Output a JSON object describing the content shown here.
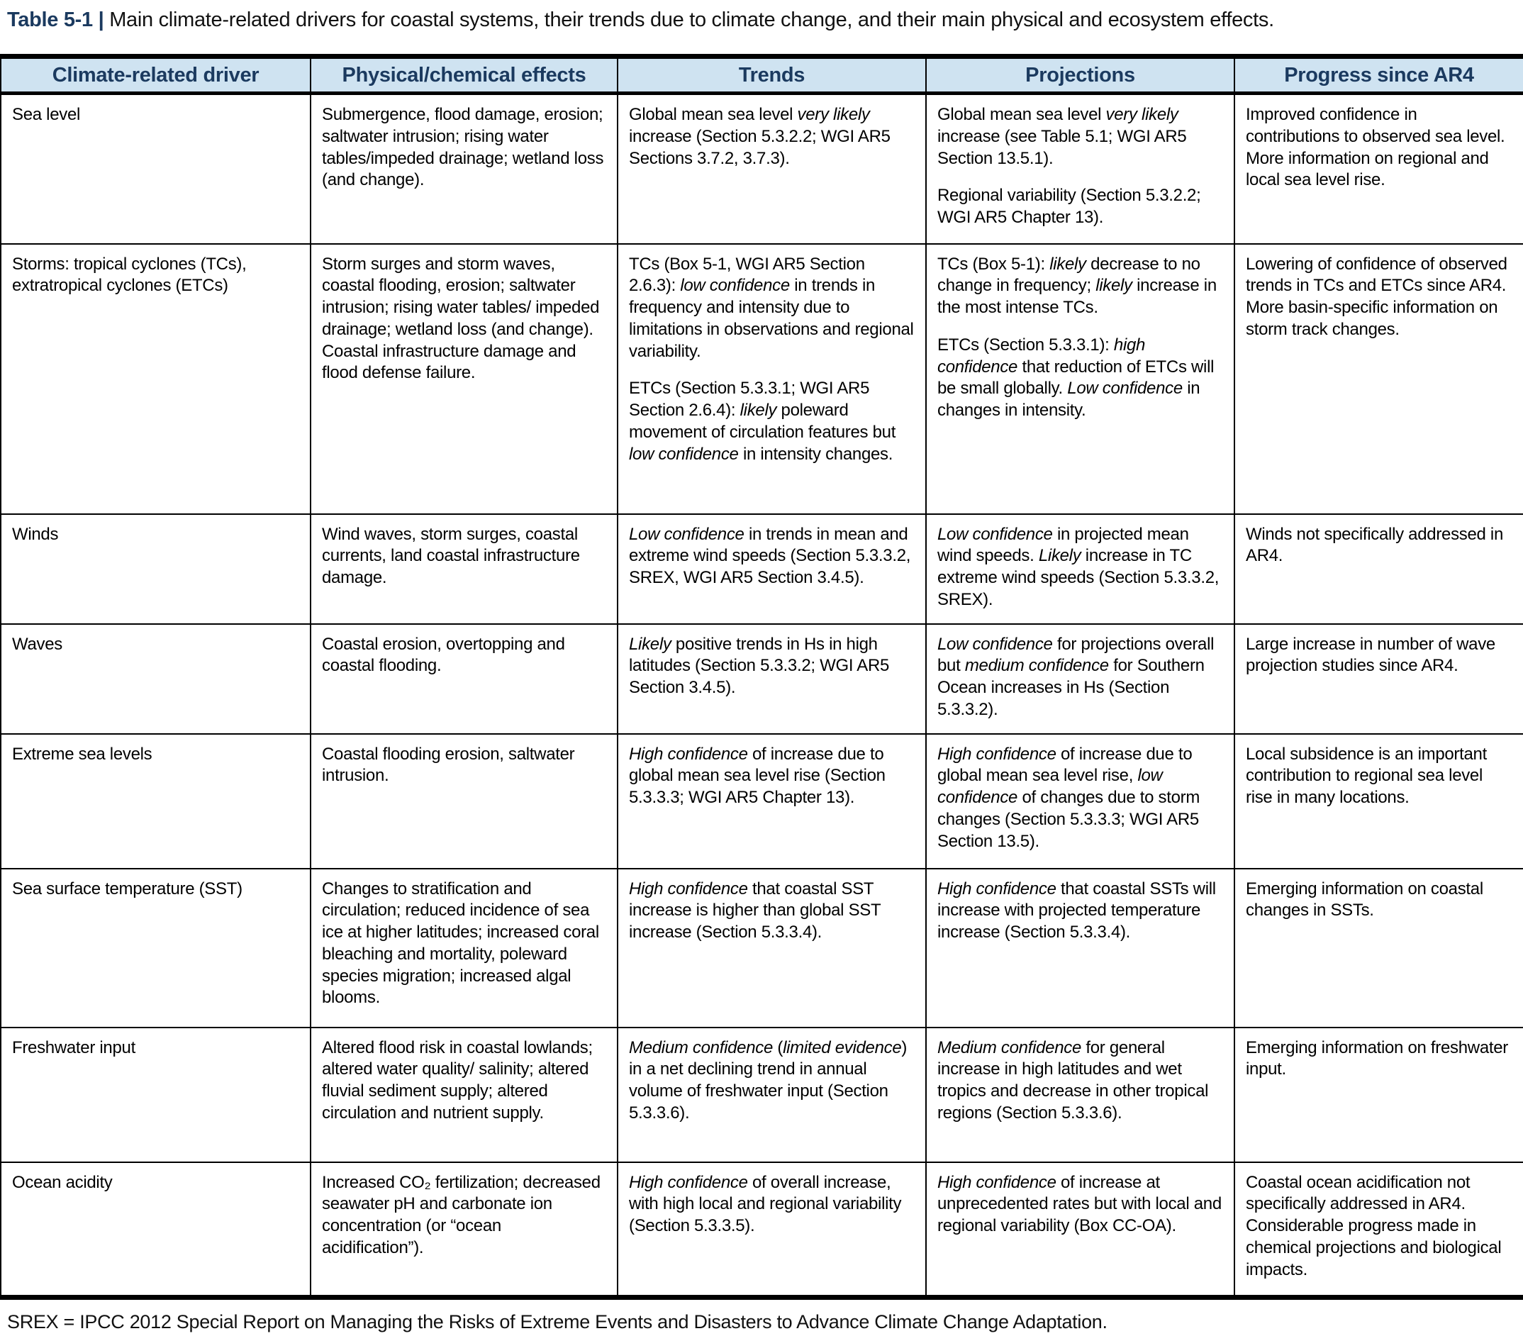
{
  "title": {
    "prefix": "Table 5-1 |",
    "text": " Main climate-related drivers for coastal systems, their trends due to climate change, and their main physical and ecosystem effects."
  },
  "colors": {
    "navy": "#1b3a5f",
    "header_bg": "#cfe3f1",
    "border": "#000000"
  },
  "table": {
    "headers": [
      "Climate-related driver",
      "Physical/chemical effects",
      "Trends",
      "Projections",
      "Progress since AR4"
    ],
    "rows": [
      {
        "driver": [
          "Sea level"
        ],
        "effects": [
          "Submergence, flood damage, erosion; saltwater intrusion; rising water tables/impeded drainage; wetland loss (and change)."
        ],
        "trends": [
          "Global mean sea level *very likely* increase (Section 5.3.2.2; WGI AR5 Sections 3.7.2, 3.7.3)."
        ],
        "projections": [
          "Global mean sea level *very likely* increase (see Table 5.1; WGI AR5 Section 13.5.1).",
          "Regional variability (Section 5.3.2.2; WGI AR5 Chapter 13)."
        ],
        "progress": [
          "Improved confidence in contributions to observed sea level. More information on regional and local sea level rise."
        ]
      },
      {
        "driver": [
          "Storms: tropical cyclones (TCs), extratropical cyclones (ETCs)"
        ],
        "effects": [
          "Storm surges and storm waves, coastal flooding, erosion; saltwater intrusion; rising water tables/ impeded drainage; wetland loss (and change). Coastal infrastructure damage and flood defense failure."
        ],
        "trends": [
          "TCs (Box 5-1, WGI AR5 Section 2.6.3): *low confidence* in trends in frequency and intensity due to limitations in observations and regional variability.",
          "ETCs (Section 5.3.3.1; WGI AR5 Section 2.6.4): *likely* poleward movement of circulation features but *low confidence* in intensity changes."
        ],
        "projections": [
          "TCs (Box 5-1): *likely* decrease to no change in frequency; *likely* increase in the most intense TCs.",
          "ETCs (Section 5.3.3.1): *high confidence* that reduction of ETCs will be small globally. *Low confidence* in changes in intensity."
        ],
        "progress": [
          "Lowering of confidence of observed trends in TCs and ETCs since AR4. More basin-specific information on storm track changes."
        ]
      },
      {
        "driver": [
          "Winds"
        ],
        "effects": [
          "Wind waves, storm surges, coastal currents, land coastal infrastructure damage."
        ],
        "trends": [
          "*Low confidence* in trends in mean and extreme wind speeds (Section 5.3.3.2, SREX, WGI AR5 Section 3.4.5)."
        ],
        "projections": [
          "*Low confidence* in projected mean wind speeds. *Likely* increase in TC extreme wind speeds (Section 5.3.3.2, SREX)."
        ],
        "progress": [
          "Winds not specifically addressed in AR4."
        ]
      },
      {
        "driver": [
          "Waves"
        ],
        "effects": [
          "Coastal erosion, overtopping and coastal flooding."
        ],
        "trends": [
          "*Likely* positive trends in Hs in high latitudes (Section 5.3.3.2; WGI AR5 Section 3.4.5)."
        ],
        "projections": [
          "*Low confidence* for projections overall but *medium confidence* for Southern Ocean increases in Hs (Section 5.3.3.2)."
        ],
        "progress": [
          "Large increase in number of wave projection studies since AR4."
        ]
      },
      {
        "driver": [
          "Extreme sea levels"
        ],
        "effects": [
          "Coastal flooding erosion, saltwater intrusion."
        ],
        "trends": [
          "*High confidence* of increase due to global mean sea level rise (Section 5.3.3.3; WGI AR5 Chapter 13)."
        ],
        "projections": [
          "*High confidence* of increase due to global mean sea level rise, *low confidence* of changes due to storm changes (Section 5.3.3.3; WGI AR5 Section 13.5)."
        ],
        "progress": [
          "Local subsidence is an important contribution to regional sea level rise in many locations."
        ]
      },
      {
        "driver": [
          "Sea surface temperature (SST)"
        ],
        "effects": [
          "Changes to stratification and circulation; reduced incidence of sea ice at higher latitudes; increased coral bleaching and mortality, poleward species migration; increased algal blooms."
        ],
        "trends": [
          "*High confidence* that coastal SST increase is higher than global SST increase (Section 5.3.3.4)."
        ],
        "projections": [
          "*High confidence* that coastal SSTs will increase with projected temperature increase (Section 5.3.3.4)."
        ],
        "progress": [
          "Emerging information on coastal changes in SSTs."
        ]
      },
      {
        "driver": [
          "Freshwater input"
        ],
        "effects": [
          "Altered flood risk in coastal lowlands; altered water quality/ salinity; altered fluvial sediment supply; altered circulation and nutrient supply."
        ],
        "trends": [
          "*Medium confidence* (*limited evidence*) in a net declining trend in annual volume of freshwater input (Section 5.3.3.6)."
        ],
        "projections": [
          "*Medium confidence* for general increase in high latitudes and wet tropics and decrease in other tropical regions (Section 5.3.3.6)."
        ],
        "progress": [
          "Emerging information on freshwater input."
        ]
      },
      {
        "driver": [
          "Ocean acidity"
        ],
        "effects": [
          "Increased CO₂ fertilization; decreased seawater pH and carbonate ion concentration (or “ocean acidification”)."
        ],
        "trends": [
          "*High confidence* of overall increase, with high local and regional variability (Section 5.3.3.5)."
        ],
        "projections": [
          "*High confidence* of increase at unprecedented rates but with local and regional variability (Box CC-OA)."
        ],
        "progress": [
          "Coastal ocean acidification not specifically addressed in AR4. Considerable progress made in chemical projections and biological impacts."
        ]
      }
    ]
  },
  "footnote": "SREX = IPCC 2012 Special Report on Managing the Risks of Extreme Events and Disasters to Advance Climate Change Adaptation."
}
